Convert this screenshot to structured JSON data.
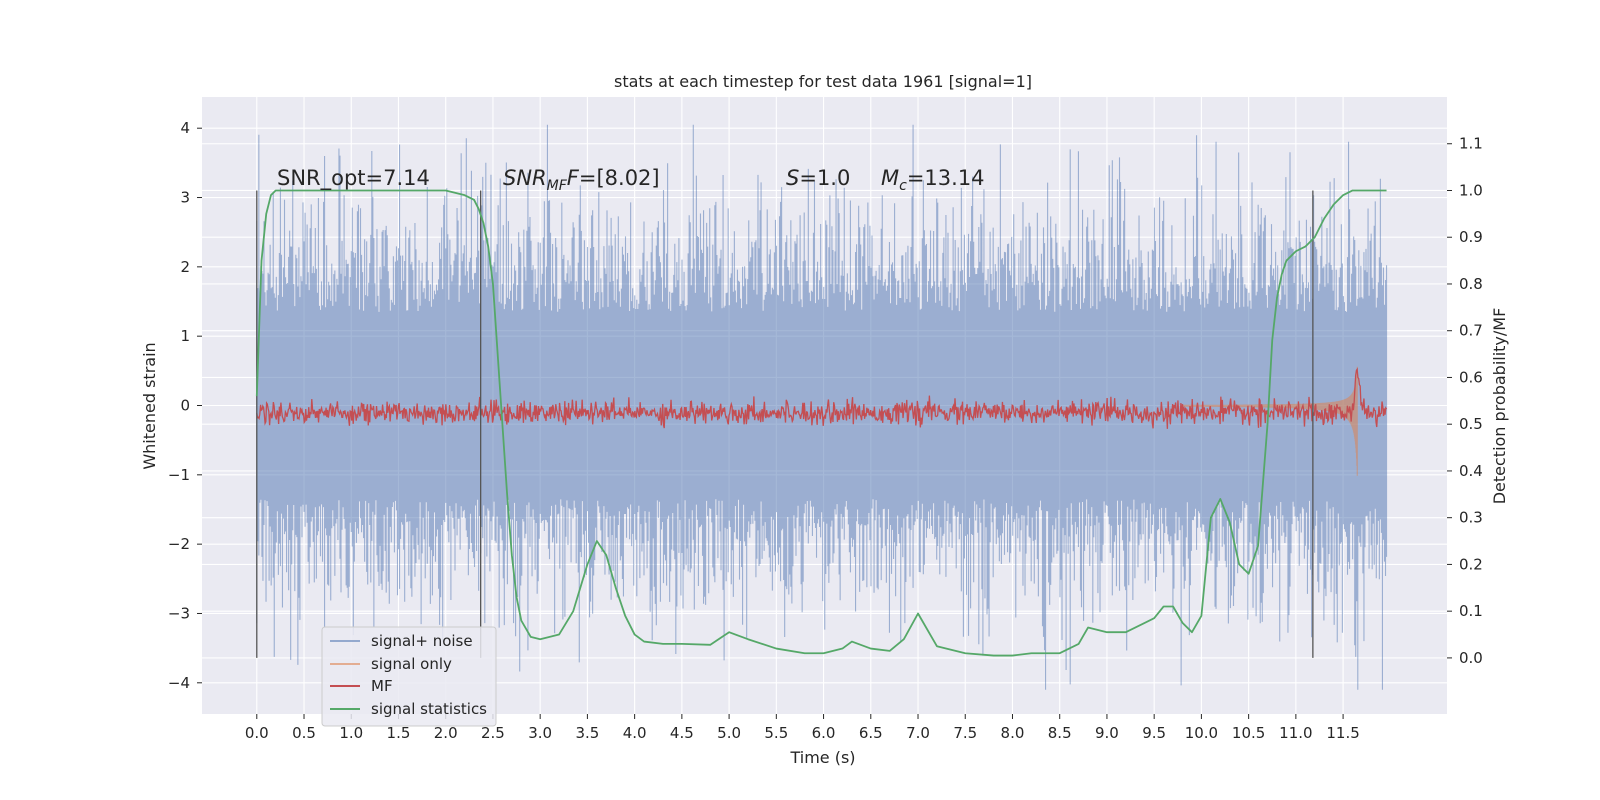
{
  "chart_data": {
    "type": "line",
    "title": "stats at each timestep for test data 1961 [signal=1]",
    "xlabel": "Time (s)",
    "ylabel": "Whitened strain",
    "y2label": "Detection probability/MF",
    "xlim": [
      -0.58,
      12.6
    ],
    "ylim": [
      -4.45,
      4.45
    ],
    "y2lim": [
      -0.12,
      1.2
    ],
    "x_ticks": [
      "0.0",
      "0.5",
      "1.0",
      "1.5",
      "2.0",
      "2.5",
      "3.0",
      "3.5",
      "4.0",
      "4.5",
      "5.0",
      "5.5",
      "6.0",
      "6.5",
      "7.0",
      "7.5",
      "8.0",
      "8.5",
      "9.0",
      "9.5",
      "10.0",
      "10.5",
      "11.0",
      "11.5"
    ],
    "y_ticks": [
      "4",
      "3",
      "2",
      "1",
      "0",
      "−1",
      "−2",
      "−3",
      "−4"
    ],
    "y_tick_values": [
      4,
      3,
      2,
      1,
      0,
      -1,
      -2,
      -3,
      -4
    ],
    "y2_ticks": [
      "1.1",
      "1.0",
      "0.9",
      "0.8",
      "0.7",
      "0.6",
      "0.5",
      "0.4",
      "0.3",
      "0.2",
      "0.1",
      "0.0"
    ],
    "y2_tick_values": [
      1.1,
      1.0,
      0.9,
      0.8,
      0.7,
      0.6,
      0.5,
      0.4,
      0.3,
      0.2,
      0.1,
      0.0
    ],
    "grid": true,
    "legend_position": "lower-left",
    "colors": {
      "background": "#eaeaf2",
      "grid": "#ffffff",
      "signal_noise": "#4c72b0",
      "signal_only": "#dd8452",
      "mf": "#c44e52",
      "statistics": "#55a868",
      "markers": "#555555"
    },
    "annotations": {
      "snr_opt": "SNR_opt=7.14",
      "snr_mf_main": "SNR",
      "snr_mf_sub": "MF",
      "snr_mf_rest": "=[8.02]",
      "s_sym": "S",
      "s_rest": "=1.0",
      "mc_main": "M",
      "mc_sub": "c",
      "mc_rest": "=13.14"
    },
    "vertical_markers_s": [
      0.0,
      2.37,
      11.18
    ],
    "series": [
      {
        "name": "signal+ noise",
        "axis": "left",
        "description_range": [
          -4.1,
          4.05
        ],
        "t_range": [
          0.0,
          11.96
        ]
      },
      {
        "name": "signal only",
        "axis": "left",
        "t_range": [
          9.8,
          11.65
        ]
      },
      {
        "name": "MF",
        "axis": "right",
        "t_range": [
          0.0,
          11.96
        ]
      },
      {
        "name": "signal statistics",
        "axis": "right",
        "x": [
          0.0,
          0.05,
          0.1,
          0.15,
          0.2,
          0.4,
          0.8,
          1.2,
          1.6,
          2.0,
          2.2,
          2.3,
          2.35,
          2.4,
          2.45,
          2.5,
          2.55,
          2.6,
          2.65,
          2.7,
          2.75,
          2.8,
          2.9,
          3.0,
          3.2,
          3.35,
          3.5,
          3.6,
          3.7,
          3.8,
          3.9,
          4.0,
          4.1,
          4.3,
          4.5,
          4.8,
          5.0,
          5.2,
          5.5,
          5.8,
          6.0,
          6.2,
          6.3,
          6.5,
          6.7,
          6.85,
          7.0,
          7.2,
          7.5,
          7.8,
          8.0,
          8.2,
          8.5,
          8.7,
          8.8,
          9.0,
          9.2,
          9.5,
          9.6,
          9.7,
          9.8,
          9.9,
          10.0,
          10.1,
          10.2,
          10.3,
          10.4,
          10.5,
          10.6,
          10.7,
          10.75,
          10.8,
          10.85,
          10.9,
          11.0,
          11.1,
          11.2,
          11.3,
          11.4,
          11.5,
          11.6,
          11.7,
          11.8,
          11.96
        ],
        "values": [
          0.56,
          0.85,
          0.95,
          0.99,
          1.0,
          1.0,
          1.0,
          1.0,
          1.0,
          1.0,
          0.99,
          0.98,
          0.96,
          0.93,
          0.88,
          0.8,
          0.65,
          0.5,
          0.35,
          0.22,
          0.13,
          0.08,
          0.045,
          0.04,
          0.05,
          0.1,
          0.2,
          0.25,
          0.22,
          0.15,
          0.09,
          0.05,
          0.035,
          0.03,
          0.03,
          0.028,
          0.055,
          0.04,
          0.02,
          0.01,
          0.01,
          0.02,
          0.035,
          0.02,
          0.015,
          0.04,
          0.095,
          0.025,
          0.01,
          0.005,
          0.005,
          0.01,
          0.01,
          0.03,
          0.065,
          0.055,
          0.055,
          0.085,
          0.11,
          0.11,
          0.075,
          0.055,
          0.09,
          0.3,
          0.34,
          0.29,
          0.2,
          0.18,
          0.24,
          0.5,
          0.68,
          0.77,
          0.82,
          0.85,
          0.87,
          0.88,
          0.9,
          0.94,
          0.97,
          0.99,
          1.0,
          1.0,
          1.0,
          1.0
        ]
      }
    ]
  }
}
